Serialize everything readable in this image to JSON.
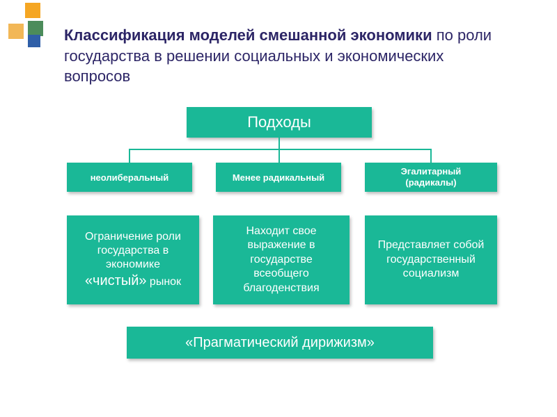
{
  "colors": {
    "box_bg": "#1ab897",
    "box_text": "#ffffff",
    "title_text": "#2c2566",
    "connector": "#1ab897",
    "shadow": "rgba(0,0,0,0.25)",
    "background": "#ffffff",
    "deco_orange1": "#f5a623",
    "deco_orange2": "#f2b756",
    "deco_green": "#4c8c5b",
    "deco_blue": "#2f5fa8"
  },
  "typography": {
    "title_fontsize": 22,
    "root_fontsize": 22,
    "approach_fontsize": 13,
    "desc_fontsize": 16,
    "bottom_fontsize": 20,
    "font_family": "Arial"
  },
  "title": {
    "bold": "Классификация моделей смешанной экономики",
    "rest": " по роли государства в решении социальных и экономических вопросов"
  },
  "tree": {
    "root": "Подходы",
    "approaches": [
      {
        "label": "неолиберальный",
        "desc_prefix": "Ограничение роли государства в экономике ",
        "desc_quoted": "«чистый»",
        "desc_suffix": " рынок"
      },
      {
        "label": "Менее радикальный",
        "desc": "Находит свое выражение в государстве всеобщего благоденствия"
      },
      {
        "label_line1": "Эгалитарный",
        "label_line2": "(радикалы)",
        "desc": "Представляет собой государственный социализм"
      }
    ],
    "bottom_quoted_open": "«",
    "bottom_text": "Прагматический дирижизм",
    "bottom_quoted_close": "»"
  }
}
